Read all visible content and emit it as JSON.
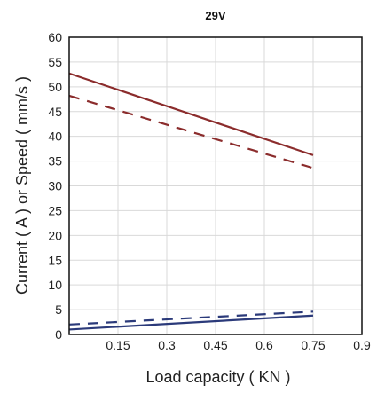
{
  "chart_data": {
    "type": "line",
    "title": "29V",
    "xlabel": "Load capacity ( KN )",
    "ylabel": "Current ( A ) or Speed ( mm/s )",
    "xlim": [
      0,
      0.9
    ],
    "ylim": [
      0,
      60
    ],
    "xticks": [
      0.15,
      0.3,
      0.45,
      0.6,
      0.75,
      0.9
    ],
    "xtick_labels": [
      "0.15",
      "0.3",
      "0.45",
      "0.6",
      "0.75",
      "0.9"
    ],
    "yticks": [
      0,
      5,
      10,
      15,
      20,
      25,
      30,
      35,
      40,
      45,
      50,
      55,
      60
    ],
    "ytick_labels": [
      "0",
      "5",
      "10",
      "15",
      "20",
      "25",
      "30",
      "35",
      "40",
      "45",
      "50",
      "55",
      "60"
    ],
    "grid": true,
    "series": [
      {
        "color": "#8b2c2c",
        "style": "solid",
        "x": [
          0,
          0.75
        ],
        "y": [
          52.7,
          36.2
        ]
      },
      {
        "color": "#8b2c2c",
        "style": "dashed",
        "x": [
          0,
          0.75
        ],
        "y": [
          48.2,
          33.6
        ]
      },
      {
        "color": "#2b3a7a",
        "style": "dashed",
        "x": [
          0,
          0.75
        ],
        "y": [
          2.0,
          4.6
        ]
      },
      {
        "color": "#2b3a7a",
        "style": "solid",
        "x": [
          0,
          0.75
        ],
        "y": [
          1.0,
          3.8
        ]
      }
    ]
  }
}
